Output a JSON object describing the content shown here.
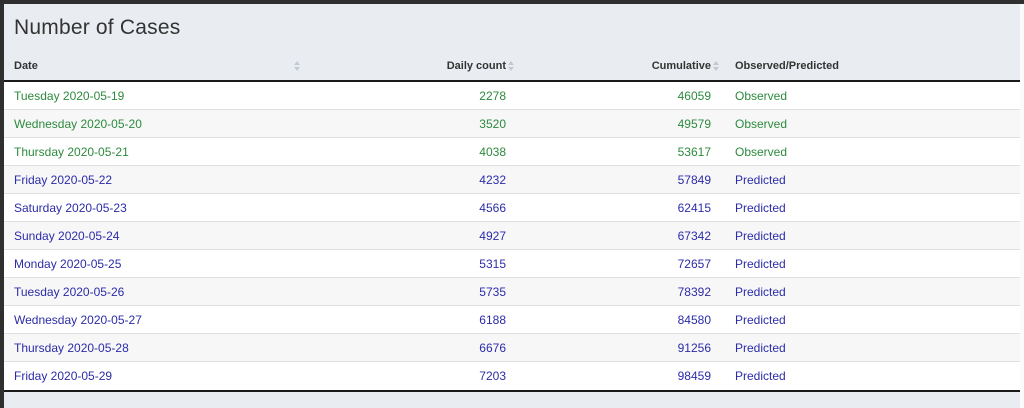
{
  "title": "Number of Cases",
  "table": {
    "columns": [
      {
        "label": "Date",
        "sortable": true,
        "align": "left"
      },
      {
        "label": "Daily count",
        "sortable": true,
        "align": "right"
      },
      {
        "label": "Cumulative",
        "sortable": true,
        "align": "right"
      },
      {
        "label": "Observed/Predicted",
        "sortable": false,
        "align": "left"
      }
    ],
    "rows": [
      {
        "date": "Tuesday 2020-05-19",
        "daily": "2278",
        "cumulative": "46059",
        "status": "Observed"
      },
      {
        "date": "Wednesday 2020-05-20",
        "daily": "3520",
        "cumulative": "49579",
        "status": "Observed"
      },
      {
        "date": "Thursday 2020-05-21",
        "daily": "4038",
        "cumulative": "53617",
        "status": "Observed"
      },
      {
        "date": "Friday 2020-05-22",
        "daily": "4232",
        "cumulative": "57849",
        "status": "Predicted"
      },
      {
        "date": "Saturday 2020-05-23",
        "daily": "4566",
        "cumulative": "62415",
        "status": "Predicted"
      },
      {
        "date": "Sunday 2020-05-24",
        "daily": "4927",
        "cumulative": "67342",
        "status": "Predicted"
      },
      {
        "date": "Monday 2020-05-25",
        "daily": "5315",
        "cumulative": "72657",
        "status": "Predicted"
      },
      {
        "date": "Tuesday 2020-05-26",
        "daily": "5735",
        "cumulative": "78392",
        "status": "Predicted"
      },
      {
        "date": "Wednesday 2020-05-27",
        "daily": "6188",
        "cumulative": "84580",
        "status": "Predicted"
      },
      {
        "date": "Thursday 2020-05-28",
        "daily": "6676",
        "cumulative": "91256",
        "status": "Predicted"
      },
      {
        "date": "Friday 2020-05-29",
        "daily": "7203",
        "cumulative": "98459",
        "status": "Predicted"
      }
    ]
  },
  "colors": {
    "observed": "#2d8a3e",
    "predicted": "#2c2ca8",
    "panel-bg": "#e9edf2",
    "bar-dark": "#2f2f2f"
  }
}
